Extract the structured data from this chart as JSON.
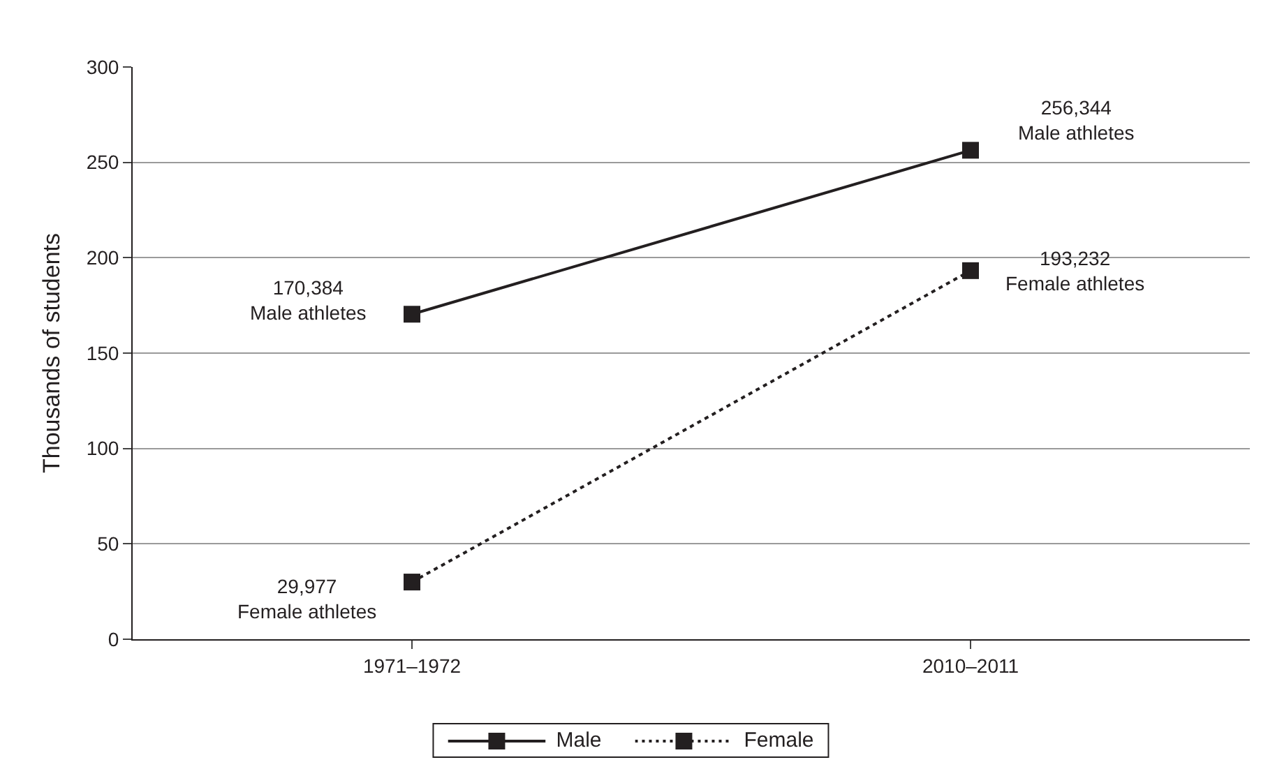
{
  "chart_data": {
    "type": "line",
    "ylabel": "Thousands of students",
    "categories": [
      "1971–1972",
      "2010–2011"
    ],
    "series": [
      {
        "name": "Male",
        "color": "#231f20",
        "values": [
          170.384,
          256.344
        ],
        "line_style": "solid"
      },
      {
        "name": "Female",
        "color": "#231f20",
        "values": [
          29.977,
          193.232
        ],
        "line_style": "dotted"
      }
    ],
    "ylim": [
      0,
      300
    ],
    "yticks": [
      0,
      50,
      100,
      150,
      200,
      250,
      300
    ],
    "grid": "y",
    "legend": "bottom",
    "marker": "square",
    "annotations": [
      {
        "text": "170,384\nMale athletes",
        "x": "1971–1972",
        "y": 170.384
      },
      {
        "text": "256,344\nMale athletes",
        "x": "2010–2011",
        "y": 256.344
      },
      {
        "text": "193,232\nFemale athletes",
        "x": "2010–2011",
        "y": 193.232
      },
      {
        "text": "29,977\nFemale athletes",
        "x": "1971–1972",
        "y": 29.977
      }
    ]
  }
}
